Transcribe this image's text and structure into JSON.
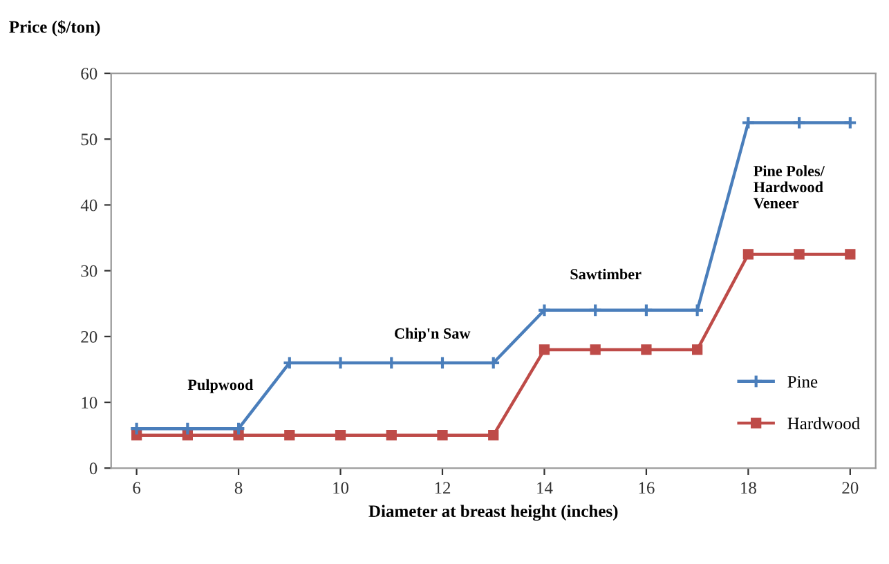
{
  "chart_data": {
    "type": "line",
    "ylabel": "Price ($/ton)",
    "xlabel": "Diameter at breast height (inches)",
    "x": [
      6,
      7,
      8,
      9,
      10,
      11,
      12,
      13,
      14,
      15,
      16,
      17,
      18,
      19,
      20
    ],
    "series": [
      {
        "name": "Pine",
        "color": "#4a7ebb",
        "marker": "cross",
        "values": [
          6,
          6,
          6,
          16,
          16,
          16,
          16,
          16,
          24,
          24,
          24,
          24,
          52.5,
          52.5,
          52.5
        ]
      },
      {
        "name": "Hardwood",
        "color": "#be4b48",
        "marker": "square",
        "values": [
          5,
          5,
          5,
          5,
          5,
          5,
          5,
          5,
          18,
          18,
          18,
          18,
          32.5,
          32.5,
          32.5
        ]
      }
    ],
    "xlim": [
      5.5,
      20.5
    ],
    "xticks": [
      6,
      8,
      10,
      12,
      14,
      16,
      18,
      20
    ],
    "ylim": [
      0,
      60
    ],
    "yticks": [
      0,
      10,
      20,
      30,
      40,
      50,
      60
    ],
    "grid": false,
    "legend": "bottom right",
    "line_style": "solid",
    "annotations": [
      "Pulpwood",
      "Chip'n Saw",
      "Sawtimber",
      "Pine Poles/\nHardwood\nVeneer"
    ]
  }
}
